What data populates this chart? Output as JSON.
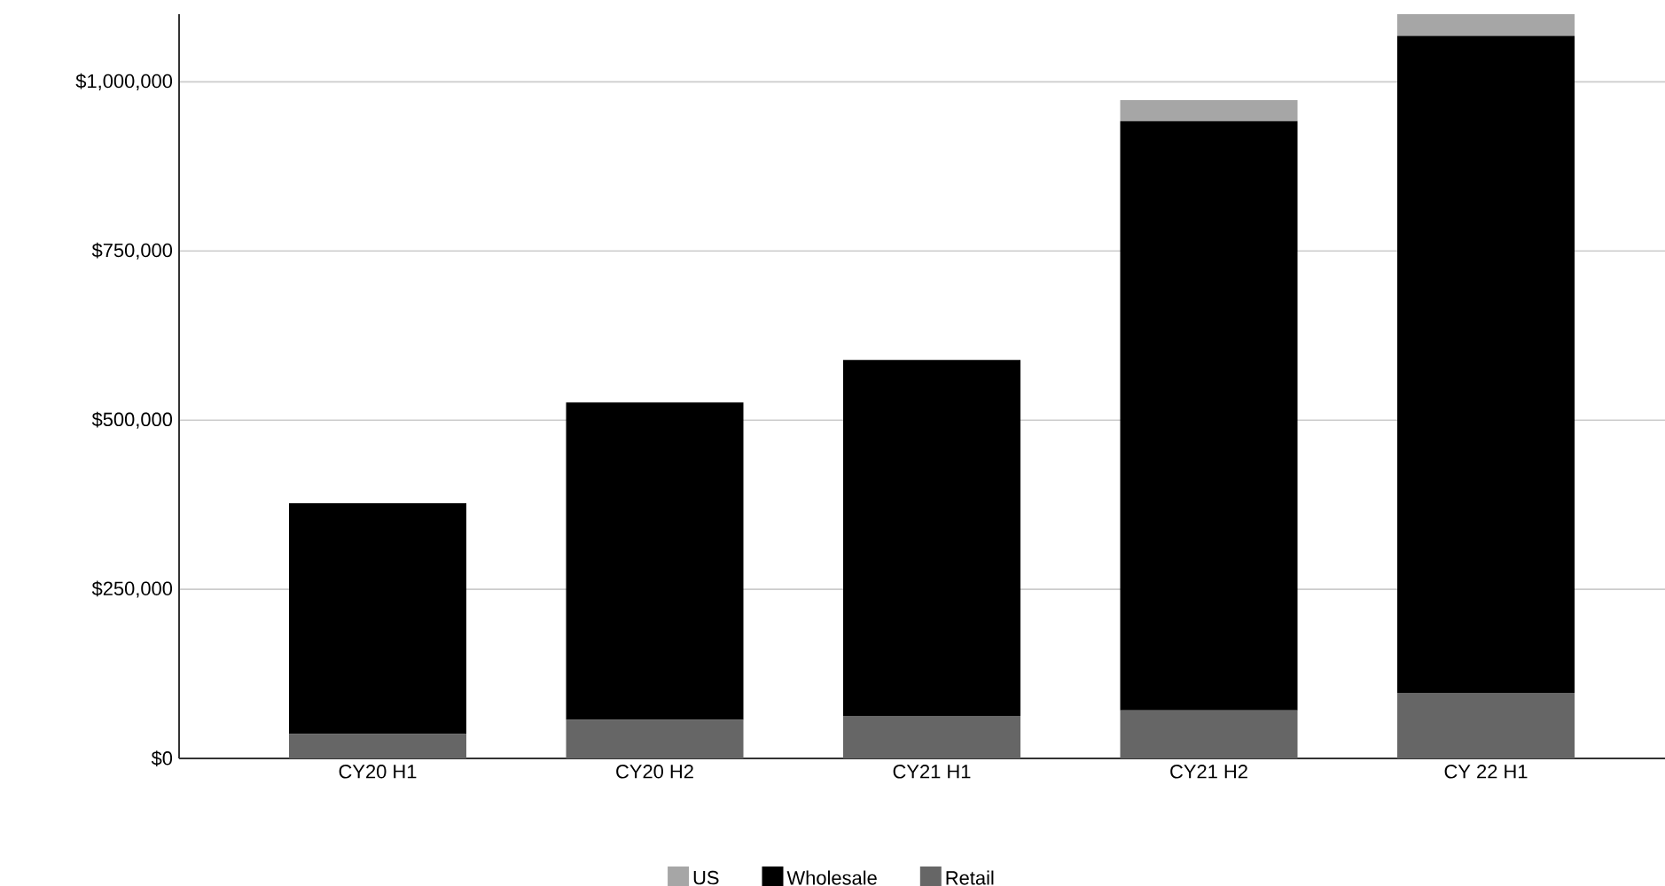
{
  "chart_data": {
    "type": "bar",
    "stacked": true,
    "categories": [
      "CY20 H1",
      "CY20 H2",
      "CY21 H1",
      "CY21 H2",
      "CY 22 H1"
    ],
    "series": [
      {
        "name": "Retail",
        "color": "#666666",
        "values": [
          36000,
          57000,
          63000,
          71000,
          97000
        ]
      },
      {
        "name": "Wholesale",
        "color": "#000000",
        "values": [
          341000,
          469000,
          526000,
          871000,
          971000
        ]
      },
      {
        "name": "US",
        "color": "#a6a6a6",
        "values": [
          null,
          null,
          null,
          31000,
          32000
        ]
      }
    ],
    "ylim": [
      0,
      1100000
    ],
    "yticks": [
      {
        "value": 0,
        "label": "$0"
      },
      {
        "value": 250000,
        "label": "$250,000"
      },
      {
        "value": 500000,
        "label": "$500,000"
      },
      {
        "value": 750000,
        "label": "$750,000"
      },
      {
        "value": 1000000,
        "label": "$1,000,000"
      }
    ],
    "grid": "y",
    "legend": "bottom"
  }
}
